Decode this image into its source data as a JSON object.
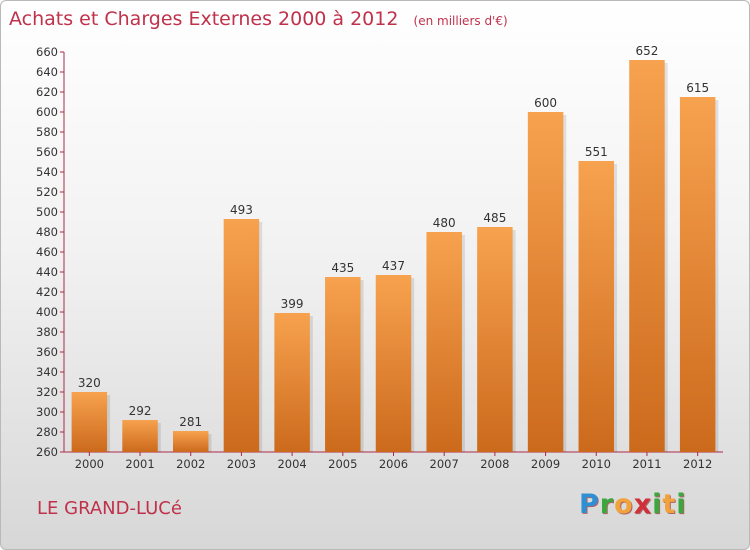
{
  "title": "Achats et Charges Externes 2000 à 2012",
  "unit_label": "(en milliers d'€)",
  "commune": "LE GRAND-LUCé",
  "logo": {
    "letters": [
      "P",
      "r",
      "o",
      "x",
      "i",
      "t",
      "i"
    ],
    "colors": [
      "#2f8fd4",
      "#39a93e",
      "#f2a23a",
      "#d0303a",
      "#39a93e",
      "#f2a23a",
      "#39a93e"
    ]
  },
  "colors": {
    "title": "#c0314b",
    "bar": "#f2913f",
    "bar_dark": "#cc6a1c",
    "axis": "#aa2a44"
  },
  "chart_data": {
    "type": "bar",
    "categories": [
      "2000",
      "2001",
      "2002",
      "2003",
      "2004",
      "2005",
      "2006",
      "2007",
      "2008",
      "2009",
      "2010",
      "2011",
      "2012"
    ],
    "values": [
      320,
      292,
      281,
      493,
      399,
      435,
      437,
      480,
      485,
      600,
      551,
      652,
      615
    ],
    "ylim": [
      260,
      660
    ],
    "ytick_step": 20,
    "grid": false,
    "data_labels": true
  }
}
